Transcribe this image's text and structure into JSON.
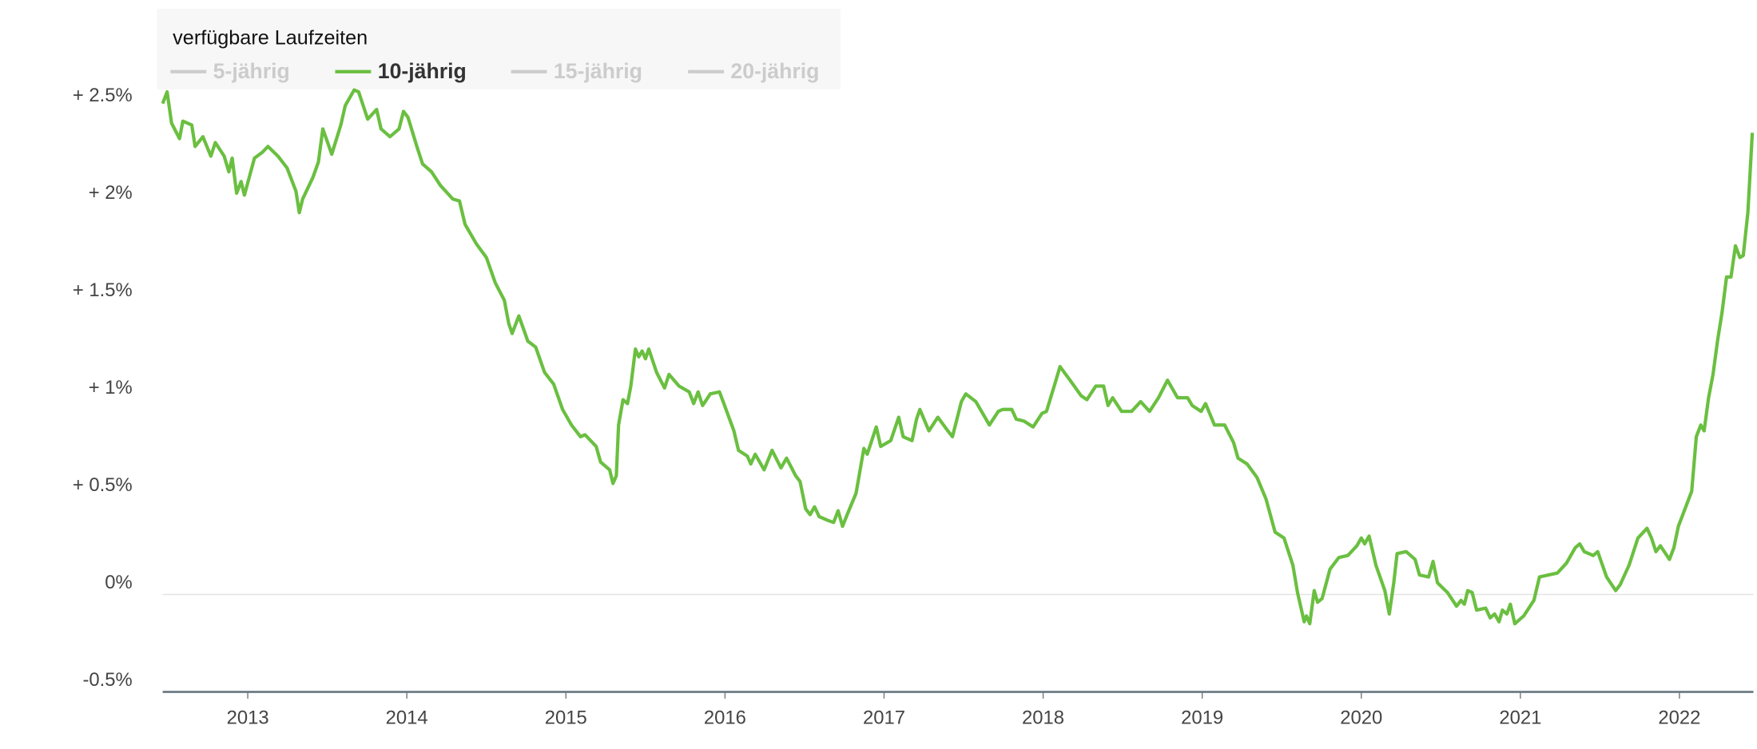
{
  "chart_data": {
    "type": "line",
    "legend_title": "verfügbare Laufzeiten",
    "xlim": [
      2012.465,
      2022.465
    ],
    "xticks": [
      2013,
      2014,
      2015,
      2016,
      2017,
      2018,
      2019,
      2020,
      2021,
      2022
    ],
    "ylim": [
      -0.5,
      2.75
    ],
    "yticks": [
      {
        "value": -0.5,
        "label": "-0.5%"
      },
      {
        "value": 0,
        "label": "0%"
      },
      {
        "value": 0.5,
        "label": "+ 0.5%"
      },
      {
        "value": 1,
        "label": "+ 1%"
      },
      {
        "value": 1.5,
        "label": "+ 1.5%"
      },
      {
        "value": 2,
        "label": "+ 2%"
      },
      {
        "value": 2.5,
        "label": "+ 2.5%"
      }
    ],
    "zero_line": true,
    "x": [
      2012.465,
      2012.493,
      2012.521,
      2012.571,
      2012.592,
      2012.648,
      2012.669,
      2012.718,
      2012.768,
      2012.796,
      2012.852,
      2012.881,
      2012.902,
      2012.93,
      2012.958,
      2012.979,
      2013.042,
      2013.092,
      2013.127,
      2013.19,
      2013.247,
      2013.303,
      2013.324,
      2013.345,
      2013.409,
      2013.444,
      2013.472,
      2013.528,
      2013.585,
      2013.613,
      2013.669,
      2013.697,
      2013.754,
      2013.81,
      2013.838,
      2013.894,
      2013.951,
      2013.979,
      2014.007,
      2014.063,
      2014.099,
      2014.155,
      2014.211,
      2014.289,
      2014.331,
      2014.366,
      2014.437,
      2014.5,
      2014.556,
      2014.613,
      2014.641,
      2014.662,
      2014.704,
      2014.761,
      2014.81,
      2014.866,
      2014.923,
      2014.979,
      2015.035,
      2015.092,
      2015.12,
      2015.19,
      2015.218,
      2015.275,
      2015.296,
      2015.317,
      2015.331,
      2015.359,
      2015.387,
      2015.408,
      2015.437,
      2015.458,
      2015.479,
      2015.5,
      2015.521,
      2015.57,
      2015.62,
      2015.648,
      2015.711,
      2015.775,
      2015.803,
      2015.831,
      2015.859,
      2015.908,
      2015.965,
      2015.993,
      2016.056,
      2016.085,
      2016.141,
      2016.162,
      2016.19,
      2016.246,
      2016.296,
      2016.352,
      2016.387,
      2016.444,
      2016.472,
      2016.507,
      2016.535,
      2016.563,
      2016.592,
      2016.648,
      2016.683,
      2016.711,
      2016.739,
      2016.768,
      2016.824,
      2016.873,
      2016.894,
      2016.951,
      2016.979,
      2017.042,
      2017.092,
      2017.12,
      2017.176,
      2017.204,
      2017.225,
      2017.282,
      2017.338,
      2017.401,
      2017.43,
      2017.486,
      2017.514,
      2017.577,
      2017.641,
      2017.662,
      2017.718,
      2017.746,
      2017.803,
      2017.831,
      2017.88,
      2017.937,
      2017.993,
      2018.021,
      2018.077,
      2018.106,
      2018.169,
      2018.239,
      2018.275,
      2018.331,
      2018.38,
      2018.408,
      2018.437,
      2018.493,
      2018.556,
      2018.613,
      2018.669,
      2018.725,
      2018.782,
      2018.845,
      2018.908,
      2018.937,
      2018.993,
      2019.021,
      2019.077,
      2019.141,
      2019.197,
      2019.225,
      2019.282,
      2019.345,
      2019.401,
      2019.458,
      2019.514,
      2019.57,
      2019.599,
      2019.641,
      2019.655,
      2019.676,
      2019.704,
      2019.725,
      2019.754,
      2019.803,
      2019.859,
      2019.915,
      2019.972,
      2020.0,
      2020.021,
      2020.049,
      2020.092,
      2020.148,
      2020.176,
      2020.204,
      2020.225,
      2020.282,
      2020.338,
      2020.366,
      2020.423,
      2020.451,
      2020.479,
      2020.542,
      2020.599,
      2020.627,
      2020.648,
      2020.669,
      2020.697,
      2020.725,
      2020.782,
      2020.81,
      2020.838,
      2020.866,
      2020.887,
      2020.915,
      2020.937,
      2020.965,
      2021.021,
      2021.085,
      2021.12,
      2021.176,
      2021.232,
      2021.289,
      2021.345,
      2021.373,
      2021.401,
      2021.458,
      2021.486,
      2021.542,
      2021.599,
      2021.627,
      2021.683,
      2021.739,
      2021.796,
      2021.824,
      2021.852,
      2021.88,
      2021.937,
      2021.965,
      2021.993,
      2022.049,
      2022.077,
      2022.106,
      2022.134,
      2022.155,
      2022.183,
      2022.211,
      2022.239,
      2022.268,
      2022.296,
      2022.324,
      2022.352,
      2022.38,
      2022.401,
      2022.43,
      2022.458
    ],
    "series": [
      {
        "name": "5-jährig",
        "color": "#cccccc",
        "visible": false
      },
      {
        "name": "10-jährig",
        "color": "#6abf40",
        "visible": true,
        "values": [
          2.52,
          2.58,
          2.42,
          2.34,
          2.43,
          2.41,
          2.3,
          2.35,
          2.25,
          2.32,
          2.25,
          2.17,
          2.24,
          2.06,
          2.12,
          2.05,
          2.24,
          2.27,
          2.3,
          2.25,
          2.19,
          2.07,
          1.96,
          2.03,
          2.14,
          2.22,
          2.39,
          2.26,
          2.41,
          2.51,
          2.59,
          2.58,
          2.44,
          2.49,
          2.39,
          2.35,
          2.39,
          2.48,
          2.45,
          2.3,
          2.21,
          2.17,
          2.1,
          2.03,
          2.02,
          1.9,
          1.8,
          1.73,
          1.6,
          1.51,
          1.39,
          1.34,
          1.43,
          1.3,
          1.27,
          1.14,
          1.08,
          0.95,
          0.87,
          0.81,
          0.82,
          0.76,
          0.68,
          0.64,
          0.57,
          0.61,
          0.87,
          1.0,
          0.98,
          1.07,
          1.26,
          1.22,
          1.25,
          1.21,
          1.26,
          1.14,
          1.06,
          1.13,
          1.07,
          1.04,
          0.98,
          1.04,
          0.97,
          1.03,
          1.04,
          0.98,
          0.84,
          0.74,
          0.71,
          0.67,
          0.72,
          0.64,
          0.74,
          0.65,
          0.7,
          0.61,
          0.58,
          0.44,
          0.41,
          0.45,
          0.4,
          0.38,
          0.37,
          0.43,
          0.35,
          0.41,
          0.52,
          0.75,
          0.72,
          0.86,
          0.76,
          0.79,
          0.91,
          0.81,
          0.79,
          0.9,
          0.95,
          0.84,
          0.91,
          0.84,
          0.81,
          0.99,
          1.03,
          0.99,
          0.9,
          0.87,
          0.94,
          0.95,
          0.95,
          0.9,
          0.89,
          0.86,
          0.93,
          0.94,
          1.09,
          1.17,
          1.1,
          1.02,
          1.0,
          1.07,
          1.07,
          0.97,
          1.01,
          0.94,
          0.94,
          0.99,
          0.94,
          1.01,
          1.1,
          1.01,
          1.01,
          0.97,
          0.94,
          0.98,
          0.87,
          0.87,
          0.78,
          0.7,
          0.67,
          0.6,
          0.49,
          0.32,
          0.29,
          0.15,
          0.01,
          -0.14,
          -0.11,
          -0.15,
          0.02,
          -0.04,
          -0.02,
          0.13,
          0.19,
          0.2,
          0.25,
          0.29,
          0.26,
          0.3,
          0.15,
          0.02,
          -0.1,
          0.06,
          0.21,
          0.22,
          0.18,
          0.1,
          0.09,
          0.17,
          0.06,
          0.01,
          -0.06,
          -0.03,
          -0.05,
          0.02,
          0.01,
          -0.08,
          -0.07,
          -0.12,
          -0.1,
          -0.14,
          -0.08,
          -0.1,
          -0.05,
          -0.15,
          -0.11,
          -0.03,
          0.09,
          0.1,
          0.11,
          0.16,
          0.24,
          0.26,
          0.22,
          0.2,
          0.22,
          0.09,
          0.02,
          0.05,
          0.15,
          0.29,
          0.34,
          0.29,
          0.22,
          0.25,
          0.18,
          0.24,
          0.35,
          0.47,
          0.53,
          0.81,
          0.87,
          0.84,
          1.01,
          1.13,
          1.3,
          1.45,
          1.63,
          1.63,
          1.79,
          1.73,
          1.74,
          1.96,
          2.37
        ]
      },
      {
        "name": "15-jährig",
        "color": "#cccccc",
        "visible": false
      },
      {
        "name": "20-jährig",
        "color": "#cccccc",
        "visible": false
      }
    ]
  }
}
